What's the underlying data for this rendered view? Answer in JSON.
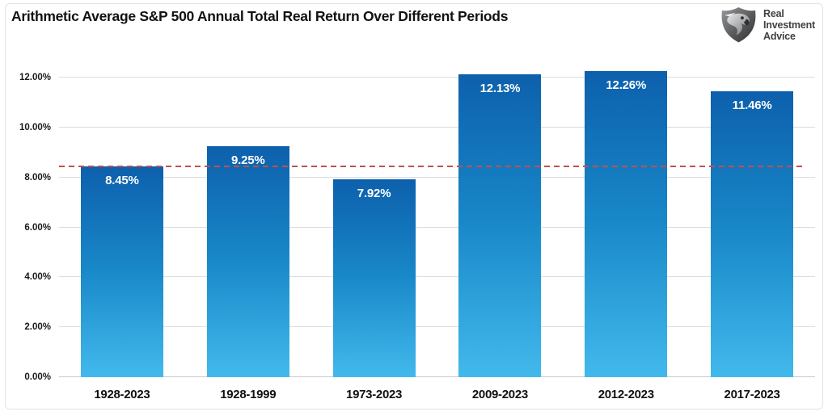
{
  "header": {
    "title": "Arithmetic Average S&P 500 Annual Total Real Return Over Different Periods",
    "logo": {
      "line1": "Real",
      "line2": "Investment",
      "line3": "Advice"
    }
  },
  "chart_data": {
    "type": "bar",
    "title": "Arithmetic Average S&P 500 Annual Total Real Return Over Different Periods",
    "categories": [
      "1928-2023",
      "1928-1999",
      "1973-2023",
      "2009-2023",
      "2012-2023",
      "2017-2023"
    ],
    "values": [
      8.45,
      9.25,
      7.92,
      12.13,
      12.26,
      11.46
    ],
    "value_labels": [
      "8.45%",
      "9.25%",
      "7.92%",
      "12.13%",
      "12.26%",
      "11.46%"
    ],
    "xlabel": "",
    "ylabel": "",
    "ylim": [
      0,
      12
    ],
    "ytick_step": 2,
    "ytick_labels": [
      "0.00%",
      "2.00%",
      "4.00%",
      "6.00%",
      "8.00%",
      "10.00%",
      "12.00%"
    ],
    "grid": "horizontal",
    "legend": "none",
    "reference_line": {
      "value": 8.45,
      "style": "dashed",
      "color": "#c0504d"
    },
    "colors": {
      "bar_gradient_top": "#0d60ac",
      "bar_gradient_mid": "#1887c8",
      "bar_gradient_bottom": "#42b9ec",
      "gridline": "#dcdcdc",
      "title_text": "#121212",
      "logo_text": "#414042"
    }
  }
}
